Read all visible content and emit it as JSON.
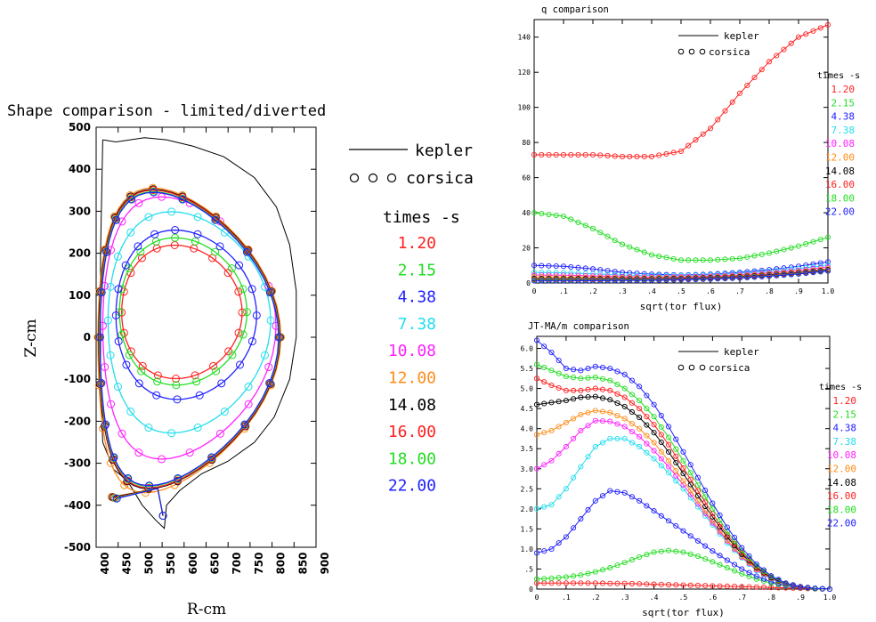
{
  "times_title": "times -s",
  "times": [
    "1.20",
    "2.15",
    "4.38",
    "7.38",
    "10.08",
    "12.00",
    "14.08",
    "16.00",
    "18.00",
    "22.00"
  ],
  "colors": [
    "#ff2020",
    "#22dd22",
    "#2020ff",
    "#22ddee",
    "#ff22ff",
    "#ff8c1a",
    "#000000",
    "#ff2020",
    "#22dd22",
    "#2020ff"
  ],
  "legend": {
    "line": "kepler",
    "circles": "corsica"
  },
  "chart_data": [
    {
      "type": "line",
      "title": "Shape comparison - limited/diverted",
      "xlabel": "R-cm",
      "ylabel": "Z-cm",
      "xlim": [
        400,
        900
      ],
      "ylim": [
        -500,
        500
      ],
      "xticks": [
        400,
        450,
        500,
        550,
        600,
        650,
        700,
        750,
        800,
        850,
        900
      ],
      "yticks": [
        500,
        400,
        300,
        200,
        100,
        0,
        -100,
        -200,
        -300,
        -400,
        -500
      ],
      "limiter": [
        [
          415,
          470
        ],
        [
          445,
          465
        ],
        [
          510,
          475
        ],
        [
          560,
          470
        ],
        [
          620,
          455
        ],
        [
          690,
          430
        ],
        [
          760,
          380
        ],
        [
          810,
          310
        ],
        [
          840,
          220
        ],
        [
          855,
          110
        ],
        [
          855,
          0
        ],
        [
          840,
          -100
        ],
        [
          805,
          -190
        ],
        [
          760,
          -250
        ],
        [
          700,
          -295
        ],
        [
          640,
          -325
        ],
        [
          590,
          -365
        ],
        [
          560,
          -400
        ],
        [
          555,
          -455
        ],
        [
          535,
          -435
        ],
        [
          505,
          -400
        ],
        [
          470,
          -340
        ],
        [
          440,
          -315
        ],
        [
          415,
          -250
        ],
        [
          410,
          -100
        ],
        [
          410,
          200
        ],
        [
          415,
          470
        ]
      ],
      "series": [
        {
          "name": "1.20",
          "r0": 595,
          "a": 137,
          "zc": 59,
          "ktop": 1.17,
          "kbot": 1.15,
          "dtop": 0.12,
          "dbot": 0.1
        },
        {
          "name": "2.15",
          "r0": 598,
          "a": 145,
          "zc": 60,
          "ktop": 1.22,
          "kbot": 1.2,
          "dtop": 0.13,
          "dbot": 0.11
        },
        {
          "name": "4.38",
          "r0": 605,
          "a": 160,
          "zc": 52,
          "ktop": 1.27,
          "kbot": 1.25,
          "dtop": 0.16,
          "dbot": 0.13
        },
        {
          "name": "7.38",
          "r0": 612,
          "a": 185,
          "zc": 40,
          "ktop": 1.4,
          "kbot": 1.45,
          "dtop": 0.22,
          "dbot": 0.22
        },
        {
          "name": "10.08",
          "r0": 612,
          "a": 197,
          "zc": 27,
          "ktop": 1.56,
          "kbot": 1.61,
          "dtop": 0.32,
          "dbot": 0.32
        },
        {
          "name": "12.00",
          "r0": 612,
          "a": 208,
          "zc": 0,
          "ktop": 1.71,
          "kbot": 1.78,
          "dtop": 0.4,
          "dbot": 0.48
        },
        {
          "name": "14.08",
          "r0": 612,
          "a": 206,
          "zc": 0,
          "ktop": 1.71,
          "kbot": 1.75,
          "dtop": 0.4,
          "dbot": 0.45
        },
        {
          "name": "16.00",
          "r0": 612,
          "a": 205,
          "zc": 0,
          "ktop": 1.71,
          "kbot": 1.75,
          "dtop": 0.4,
          "dbot": 0.45
        },
        {
          "name": "18.00",
          "r0": 612,
          "a": 204,
          "zc": 0,
          "ktop": 1.7,
          "kbot": 1.74,
          "dtop": 0.4,
          "dbot": 0.45
        },
        {
          "name": "22.00",
          "r0": 612,
          "a": 203,
          "zc": 0,
          "ktop": 1.7,
          "kbot": 1.74,
          "dtop": 0.4,
          "dbot": 0.45
        }
      ]
    },
    {
      "type": "line",
      "title": "q comparison",
      "xlabel": "sqrt(tor flux)",
      "ylabel": "",
      "xlim": [
        0,
        1.0
      ],
      "ylim": [
        0,
        150
      ],
      "xticks": [
        0,
        0.1,
        0.2,
        0.3,
        0.4,
        0.5,
        0.6,
        0.7,
        0.8,
        0.9,
        1.0
      ],
      "xticklabels": [
        "0",
        ".1",
        ".2",
        ".3",
        ".4",
        ".5",
        ".6",
        ".7",
        ".8",
        ".9",
        "1.0"
      ],
      "yticks": [
        0,
        20,
        40,
        60,
        80,
        100,
        120,
        140
      ],
      "x": [
        0,
        0.1,
        0.2,
        0.3,
        0.4,
        0.5,
        0.6,
        0.7,
        0.8,
        0.9,
        1.0
      ],
      "series": [
        {
          "name": "1.20",
          "values": [
            73,
            73,
            73,
            72,
            72,
            75,
            88,
            108,
            126,
            140,
            147
          ]
        },
        {
          "name": "2.15",
          "values": [
            40,
            38,
            31,
            22,
            16,
            13,
            13,
            14,
            17,
            21,
            26
          ]
        },
        {
          "name": "4.38",
          "values": [
            10,
            9.5,
            8,
            6,
            5,
            4.5,
            5,
            6,
            7.5,
            9.5,
            12
          ]
        },
        {
          "name": "7.38",
          "values": [
            6,
            5.8,
            5.2,
            4.5,
            4.2,
            4.2,
            4.6,
            5.4,
            6.6,
            8.2,
            10
          ]
        },
        {
          "name": "10.08",
          "values": [
            4.5,
            4.4,
            4,
            3.6,
            3.4,
            3.5,
            3.9,
            4.6,
            5.8,
            7.2,
            9
          ]
        },
        {
          "name": "12.00",
          "values": [
            3.5,
            3.4,
            3.2,
            3,
            2.9,
            3,
            3.4,
            4.1,
            5.1,
            6.4,
            8
          ]
        },
        {
          "name": "14.08",
          "values": [
            2.5,
            2.5,
            2.4,
            2.4,
            2.4,
            2.6,
            3,
            3.6,
            4.6,
            5.9,
            7.5
          ]
        },
        {
          "name": "16.00",
          "values": [
            2,
            2,
            2,
            2,
            2.1,
            2.3,
            2.7,
            3.3,
            4.3,
            5.6,
            7.2
          ]
        },
        {
          "name": "18.00",
          "values": [
            1.6,
            1.6,
            1.6,
            1.7,
            1.8,
            2,
            2.4,
            3,
            4,
            5.3,
            7
          ]
        },
        {
          "name": "22.00",
          "values": [
            1.2,
            1.2,
            1.3,
            1.4,
            1.5,
            1.8,
            2.2,
            2.8,
            3.8,
            5.1,
            6.8
          ]
        }
      ]
    },
    {
      "type": "line",
      "title": "JT-MA/m comparison",
      "xlabel": "sqrt(tor flux)",
      "ylabel": "",
      "xlim": [
        0,
        1.0
      ],
      "ylim": [
        0,
        6.3
      ],
      "xticks": [
        0,
        0.1,
        0.2,
        0.3,
        0.4,
        0.5,
        0.6,
        0.7,
        0.8,
        0.9,
        1.0
      ],
      "xticklabels": [
        "0",
        ".1",
        ".2",
        ".3",
        ".4",
        ".5",
        ".6",
        ".7",
        ".8",
        ".9",
        "1.0"
      ],
      "yticks": [
        0,
        0.5,
        1.0,
        1.5,
        2.0,
        2.5,
        3.0,
        3.5,
        4.0,
        4.5,
        5.0,
        5.5,
        6.0
      ],
      "yticklabels": [
        "0",
        ".5",
        "1.0",
        "1.5",
        "2.0",
        "2.5",
        "3.0",
        "3.5",
        "4.0",
        "4.5",
        "5.0",
        "5.5",
        "6.0"
      ],
      "x": [
        0,
        0.05,
        0.1,
        0.15,
        0.2,
        0.25,
        0.3,
        0.35,
        0.4,
        0.45,
        0.5,
        0.55,
        0.6,
        0.65,
        0.7,
        0.75,
        0.8,
        0.85,
        0.9,
        0.95,
        1.0
      ],
      "series": [
        {
          "name": "1.20",
          "values": [
            0.15,
            0.15,
            0.15,
            0.15,
            0.15,
            0.14,
            0.14,
            0.13,
            0.12,
            0.11,
            0.1,
            0.09,
            0.08,
            0.07,
            0.06,
            0.05,
            0.04,
            0.03,
            0.02,
            0.01,
            0
          ]
        },
        {
          "name": "2.15",
          "values": [
            0.25,
            0.27,
            0.3,
            0.35,
            0.43,
            0.53,
            0.66,
            0.8,
            0.92,
            0.96,
            0.92,
            0.82,
            0.68,
            0.53,
            0.38,
            0.25,
            0.15,
            0.08,
            0.04,
            0.02,
            0
          ]
        },
        {
          "name": "4.38",
          "values": [
            0.9,
            1.0,
            1.3,
            1.75,
            2.2,
            2.45,
            2.4,
            2.2,
            1.95,
            1.7,
            1.45,
            1.2,
            0.95,
            0.72,
            0.5,
            0.32,
            0.18,
            0.09,
            0.04,
            0.01,
            0
          ]
        },
        {
          "name": "7.38",
          "values": [
            2.0,
            2.1,
            2.5,
            3.05,
            3.55,
            3.75,
            3.75,
            3.55,
            3.25,
            2.9,
            2.5,
            2.05,
            1.6,
            1.15,
            0.78,
            0.46,
            0.25,
            0.11,
            0.05,
            0.01,
            0
          ]
        },
        {
          "name": "10.08",
          "values": [
            3.0,
            3.2,
            3.55,
            3.95,
            4.2,
            4.18,
            4.05,
            3.8,
            3.45,
            3.05,
            2.6,
            2.12,
            1.65,
            1.2,
            0.8,
            0.48,
            0.26,
            0.12,
            0.05,
            0.01,
            0
          ]
        },
        {
          "name": "12.00",
          "values": [
            3.85,
            3.95,
            4.15,
            4.35,
            4.45,
            4.4,
            4.25,
            4.0,
            3.65,
            3.2,
            2.7,
            2.2,
            1.7,
            1.22,
            0.82,
            0.5,
            0.27,
            0.12,
            0.05,
            0.01,
            0
          ]
        },
        {
          "name": "14.08",
          "values": [
            4.6,
            4.65,
            4.7,
            4.78,
            4.8,
            4.72,
            4.55,
            4.28,
            3.9,
            3.42,
            2.88,
            2.33,
            1.8,
            1.3,
            0.87,
            0.53,
            0.28,
            0.13,
            0.05,
            0.01,
            0
          ]
        },
        {
          "name": "16.00",
          "values": [
            5.25,
            5.08,
            4.95,
            4.95,
            5.0,
            4.95,
            4.78,
            4.5,
            4.1,
            3.6,
            3.02,
            2.45,
            1.88,
            1.36,
            0.91,
            0.55,
            0.3,
            0.14,
            0.05,
            0.01,
            0
          ]
        },
        {
          "name": "18.00",
          "values": [
            5.6,
            5.45,
            5.3,
            5.25,
            5.28,
            5.2,
            5.0,
            4.7,
            4.3,
            3.78,
            3.2,
            2.6,
            2.0,
            1.44,
            0.96,
            0.58,
            0.31,
            0.14,
            0.06,
            0.01,
            0
          ]
        },
        {
          "name": "22.00",
          "values": [
            6.2,
            5.9,
            5.5,
            5.45,
            5.55,
            5.5,
            5.35,
            5.05,
            4.6,
            4.05,
            3.42,
            2.78,
            2.14,
            1.54,
            1.03,
            0.62,
            0.33,
            0.15,
            0.06,
            0.02,
            0
          ]
        }
      ]
    }
  ]
}
